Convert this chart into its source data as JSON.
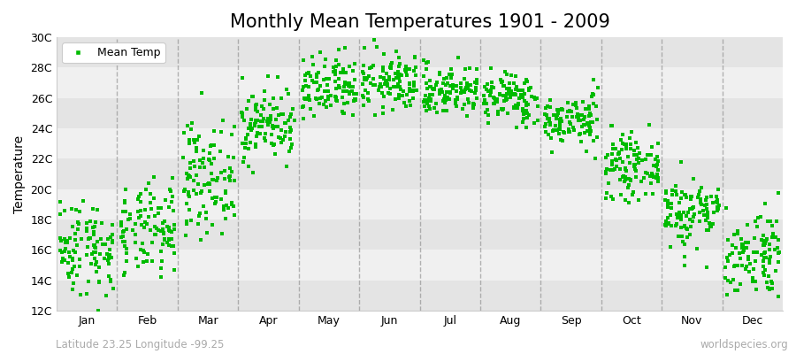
{
  "title": "Monthly Mean Temperatures 1901 - 2009",
  "ylabel": "Temperature",
  "ylim": [
    12,
    30
  ],
  "yticks": [
    12,
    14,
    16,
    18,
    20,
    22,
    24,
    26,
    28,
    30
  ],
  "ytick_labels": [
    "12C",
    "14C",
    "16C",
    "18C",
    "20C",
    "22C",
    "24C",
    "26C",
    "28C",
    "30C"
  ],
  "months": [
    "Jan",
    "Feb",
    "Mar",
    "Apr",
    "May",
    "Jun",
    "Jul",
    "Aug",
    "Sep",
    "Oct",
    "Nov",
    "Dec"
  ],
  "monthly_means": [
    16.2,
    17.2,
    20.8,
    24.3,
    26.5,
    27.0,
    26.5,
    26.0,
    24.5,
    21.5,
    18.5,
    15.8
  ],
  "monthly_stds": [
    1.6,
    1.5,
    1.8,
    1.2,
    1.1,
    0.95,
    0.85,
    0.85,
    0.85,
    1.0,
    1.2,
    1.5
  ],
  "n_years": 109,
  "seed": 42,
  "marker_color": "#00bb00",
  "marker": "s",
  "marker_size": 3,
  "legend_label": "Mean Temp",
  "subtitle_left": "Latitude 23.25 Longitude -99.25",
  "subtitle_right": "worldspecies.org",
  "background_color": "#ffffff",
  "band_light": "#f0f0f0",
  "band_dark": "#e4e4e4",
  "title_fontsize": 15,
  "axis_label_fontsize": 10,
  "tick_fontsize": 9,
  "subtitle_fontsize": 8.5,
  "dashed_color": "#888888",
  "dashed_lw": 1.0
}
